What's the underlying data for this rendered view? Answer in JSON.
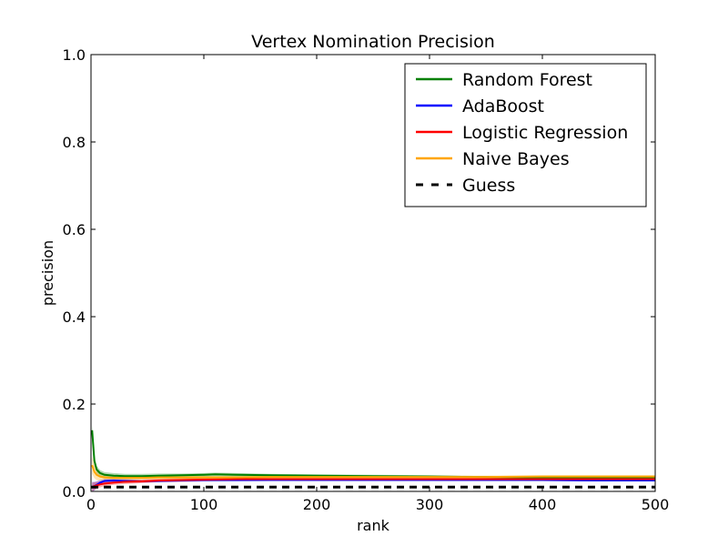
{
  "chart_data": {
    "type": "line",
    "title": "Vertex Nomination Precision",
    "xlabel": "rank",
    "ylabel": "precision",
    "xlim": [
      0,
      500
    ],
    "ylim": [
      0,
      1.0
    ],
    "xticks": [
      0,
      100,
      200,
      300,
      400,
      500
    ],
    "xtick_labels": [
      "0",
      "100",
      "200",
      "300",
      "400",
      "500"
    ],
    "yticks": [
      0,
      0.2,
      0.4,
      0.6,
      0.8,
      1.0
    ],
    "ytick_labels": [
      "0.0",
      "0.2",
      "0.4",
      "0.6",
      "0.8",
      "1.0"
    ],
    "grid": false,
    "legend_position": "top-right",
    "series": [
      {
        "name": "Random Forest",
        "color": "#008000",
        "dash": "solid",
        "x": [
          1,
          3,
          5,
          8,
          12,
          20,
          30,
          45,
          60,
          80,
          100,
          110,
          130,
          160,
          200,
          250,
          300,
          350,
          400,
          450,
          500
        ],
        "y": [
          0.14,
          0.07,
          0.05,
          0.042,
          0.038,
          0.036,
          0.035,
          0.035,
          0.036,
          0.037,
          0.038,
          0.039,
          0.038,
          0.037,
          0.036,
          0.035,
          0.034,
          0.033,
          0.032,
          0.032,
          0.031
        ],
        "band": [
          0.012,
          0.01,
          0.008,
          0.007,
          0.006,
          0.006,
          0.005,
          0.005,
          0.005,
          0.004,
          0.004,
          0.004,
          0.004,
          0.003,
          0.003,
          0.003,
          0.003,
          0.002,
          0.002,
          0.002,
          0.002
        ]
      },
      {
        "name": "AdaBoost",
        "color": "#0000ff",
        "dash": "solid",
        "x": [
          1,
          3,
          5,
          8,
          12,
          20,
          30,
          45,
          60,
          80,
          100,
          130,
          160,
          200,
          250,
          300,
          350,
          400,
          450,
          500
        ],
        "y": [
          0.01,
          0.012,
          0.015,
          0.02,
          0.024,
          0.025,
          0.024,
          0.023,
          0.024,
          0.025,
          0.026,
          0.026,
          0.026,
          0.026,
          0.026,
          0.026,
          0.026,
          0.026,
          0.025,
          0.025
        ],
        "band": [
          0.012,
          0.01,
          0.008,
          0.006,
          0.005,
          0.004,
          0.004,
          0.003,
          0.003,
          0.003,
          0.003,
          0.003,
          0.002,
          0.002,
          0.002,
          0.002,
          0.002,
          0.002,
          0.002,
          0.002
        ]
      },
      {
        "name": "Logistic Regression",
        "color": "#ff0000",
        "dash": "solid",
        "x": [
          1,
          3,
          5,
          8,
          12,
          20,
          30,
          45,
          60,
          80,
          100,
          130,
          160,
          200,
          250,
          300,
          350,
          400,
          450,
          500
        ],
        "y": [
          0.01,
          0.012,
          0.014,
          0.016,
          0.018,
          0.02,
          0.022,
          0.023,
          0.025,
          0.026,
          0.027,
          0.028,
          0.028,
          0.028,
          0.028,
          0.028,
          0.028,
          0.028,
          0.028,
          0.028
        ],
        "band": [
          0.01,
          0.009,
          0.008,
          0.007,
          0.006,
          0.005,
          0.005,
          0.004,
          0.004,
          0.004,
          0.004,
          0.003,
          0.003,
          0.003,
          0.003,
          0.003,
          0.003,
          0.003,
          0.003,
          0.003
        ]
      },
      {
        "name": "Naive Bayes",
        "color": "#ffa500",
        "dash": "solid",
        "x": [
          1,
          3,
          5,
          8,
          12,
          20,
          30,
          45,
          60,
          80,
          100,
          130,
          160,
          200,
          250,
          300,
          350,
          400,
          450,
          500
        ],
        "y": [
          0.06,
          0.045,
          0.038,
          0.034,
          0.032,
          0.031,
          0.031,
          0.031,
          0.032,
          0.032,
          0.032,
          0.032,
          0.033,
          0.033,
          0.033,
          0.033,
          0.033,
          0.034,
          0.034,
          0.034
        ],
        "band": [
          0.02,
          0.015,
          0.012,
          0.01,
          0.008,
          0.007,
          0.006,
          0.005,
          0.005,
          0.004,
          0.004,
          0.004,
          0.003,
          0.003,
          0.003,
          0.003,
          0.003,
          0.003,
          0.003,
          0.003
        ]
      },
      {
        "name": "Guess",
        "color": "#000000",
        "dash": "dashed",
        "x": [
          0,
          500
        ],
        "y": [
          0.01,
          0.01
        ],
        "band": null
      }
    ]
  }
}
